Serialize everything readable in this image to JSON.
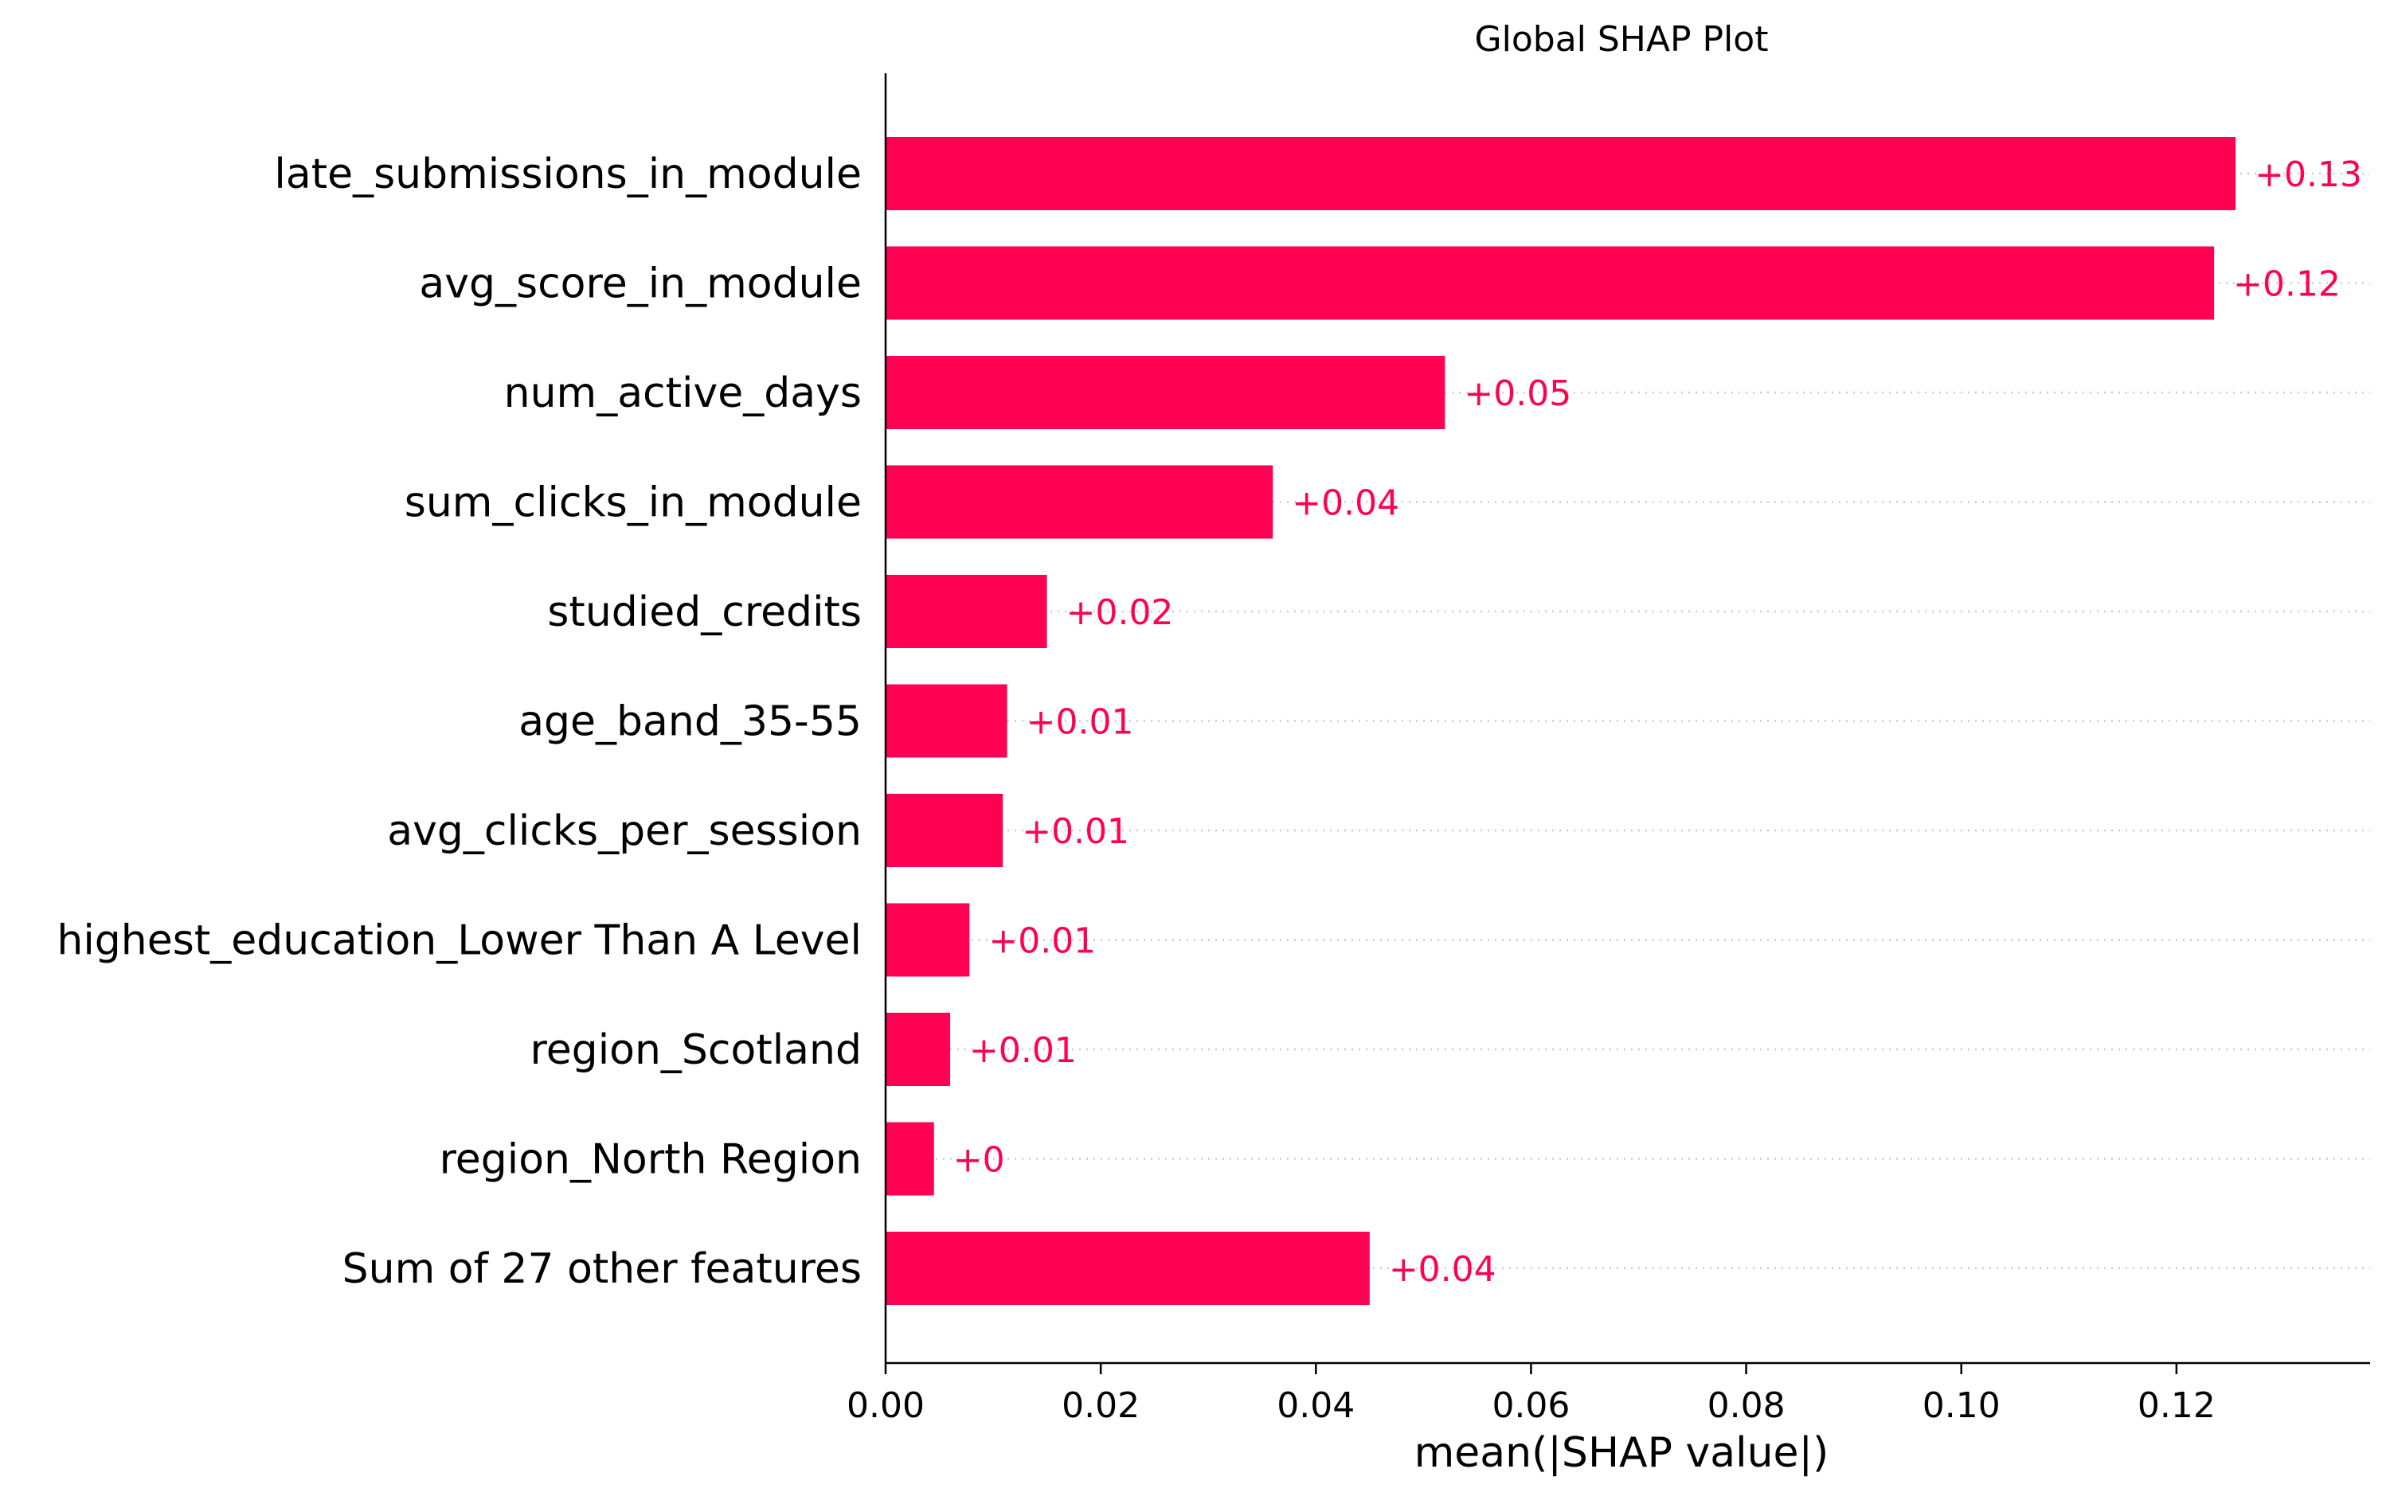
{
  "chart_data": {
    "type": "bar",
    "orientation": "horizontal",
    "title": "Global SHAP Plot",
    "xlabel": "mean(|SHAP value|)",
    "ylabel": "",
    "xlim": [
      0.0,
      0.138
    ],
    "xticks": [
      0.0,
      0.02,
      0.04,
      0.06,
      0.08,
      0.1,
      0.12
    ],
    "xtick_labels": [
      "0.00",
      "0.02",
      "0.04",
      "0.06",
      "0.08",
      "0.10",
      "0.12"
    ],
    "grid": false,
    "row_guides": "dotted",
    "bar_color": "#ff0052",
    "label_color": "#ff0052",
    "categories": [
      "late_submissions_in_module",
      "avg_score_in_module",
      "num_active_days",
      "sum_clicks_in_module",
      "studied_credits",
      "age_band_35-55",
      "avg_clicks_per_session",
      "highest_education_Lower Than A Level",
      "region_Scotland",
      "region_North Region",
      "Sum of 27 other features"
    ],
    "values": [
      0.1255,
      0.1235,
      0.052,
      0.036,
      0.015,
      0.0113,
      0.0109,
      0.0078,
      0.006,
      0.0045,
      0.045
    ],
    "data_labels": [
      "+0.13",
      "+0.12",
      "+0.05",
      "+0.04",
      "+0.02",
      "+0.01",
      "+0.01",
      "+0.01",
      "+0.01",
      "+0",
      "+0.04"
    ]
  }
}
